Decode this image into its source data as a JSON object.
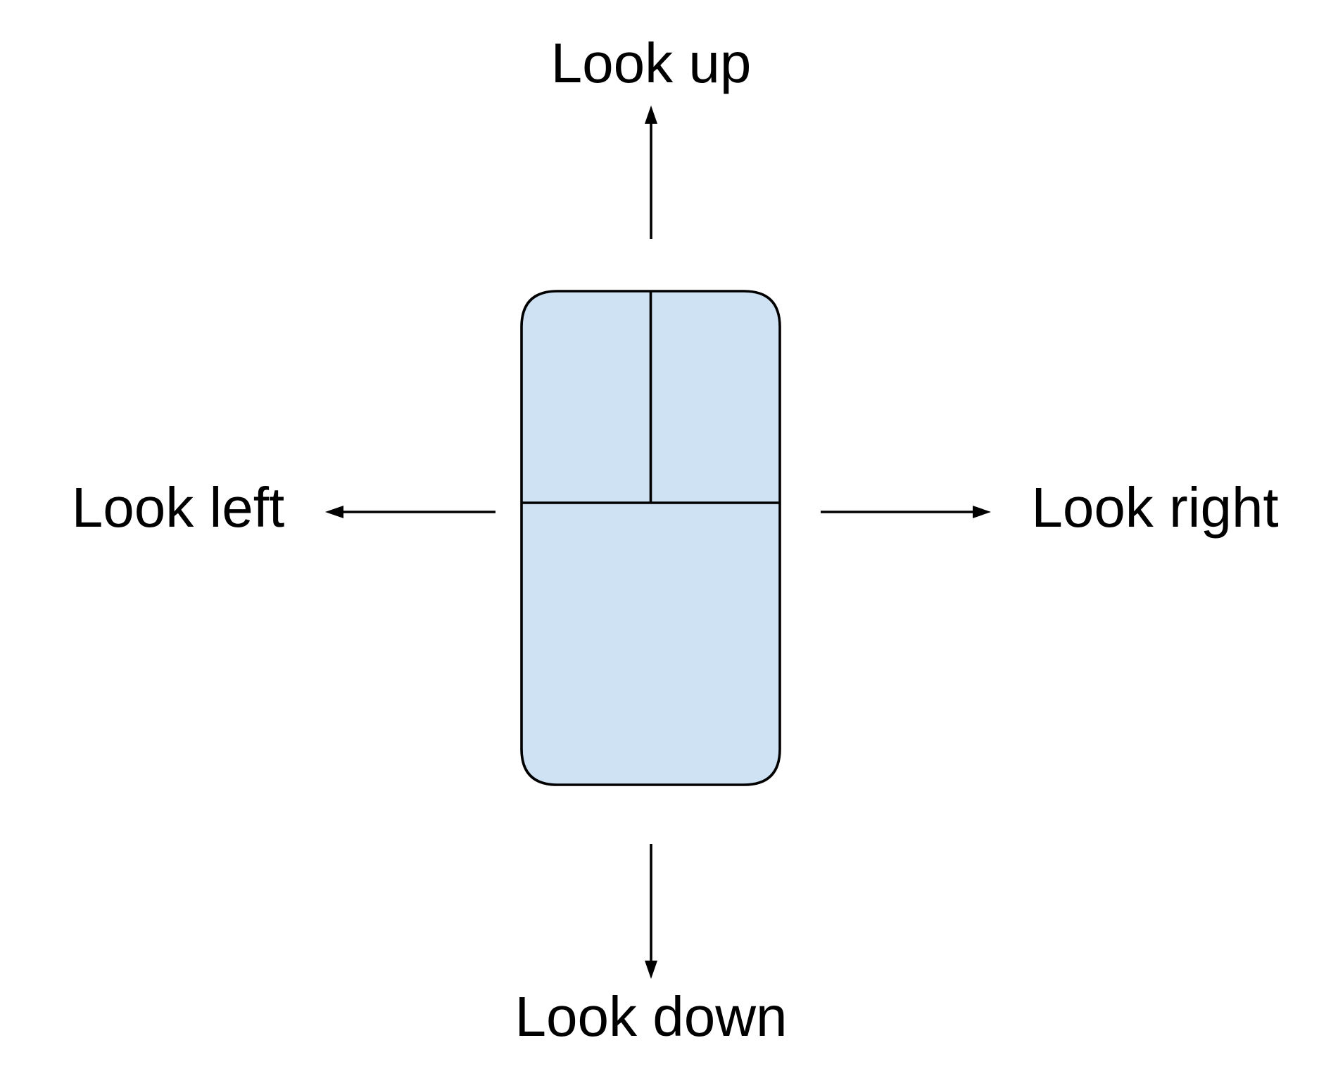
{
  "labels": {
    "up": "Look up",
    "left": "Look left",
    "right": "Look right",
    "down": "Look down"
  },
  "icons": {
    "device": "mouse-icon",
    "arrows": [
      "arrow-up-icon",
      "arrow-left-icon",
      "arrow-right-icon",
      "arrow-down-icon"
    ]
  },
  "colors": {
    "device_fill": "#cfe2f3",
    "stroke": "#000000",
    "text": "#000000",
    "background": "#ffffff"
  }
}
